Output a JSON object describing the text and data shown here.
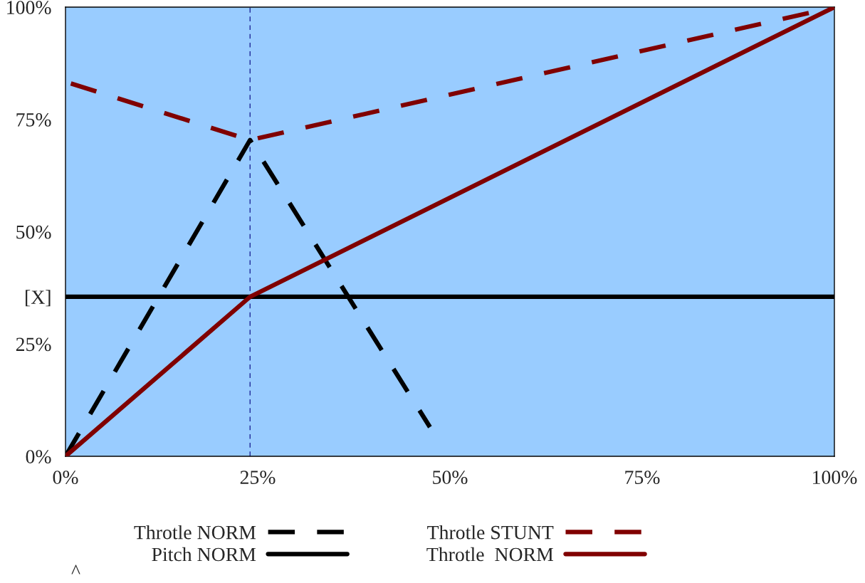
{
  "chart_data": {
    "type": "line",
    "xlim": [
      0,
      100
    ],
    "ylim": [
      0,
      100
    ],
    "xticks": [
      {
        "value": 0,
        "label": "0%"
      },
      {
        "value": 25,
        "label": "25%"
      },
      {
        "value": 50,
        "label": "50%"
      },
      {
        "value": 75,
        "label": "75%"
      },
      {
        "value": 100,
        "label": "100%"
      }
    ],
    "yticks": [
      {
        "value": 0,
        "label": "0%"
      },
      {
        "value": 25,
        "label": "25%"
      },
      {
        "value": 35.5,
        "label": "[X]"
      },
      {
        "value": 50,
        "label": "50%"
      },
      {
        "value": 75,
        "label": "75%"
      },
      {
        "value": 100,
        "label": "100%"
      }
    ],
    "series": [
      {
        "name": "Throtle NORM",
        "color": "#000000",
        "line_style": "dashed",
        "x": [
          0,
          24,
          47.4
        ],
        "values": [
          0,
          70.4,
          6.5
        ]
      },
      {
        "name": "Pitch NORM",
        "color": "#000000",
        "line_style": "solid",
        "x": [
          0,
          100
        ],
        "values": [
          35.5,
          35.5
        ]
      },
      {
        "name": "Throtle STUNT",
        "color": "#800000",
        "line_style": "dashed",
        "x": [
          0.7,
          24,
          100
        ],
        "values": [
          83,
          70.4,
          100
        ]
      },
      {
        "name": "Throtle  NORM",
        "color": "#800000",
        "line_style": "solid",
        "x": [
          0,
          24,
          100
        ],
        "values": [
          0,
          35.5,
          100
        ]
      }
    ],
    "ref_lines": [
      {
        "axis": "x",
        "value": 24,
        "color": "#000080",
        "line_style": "dashed"
      }
    ],
    "annotations": [
      "^"
    ],
    "legend": "bottom",
    "grid": false,
    "marker": "none"
  }
}
